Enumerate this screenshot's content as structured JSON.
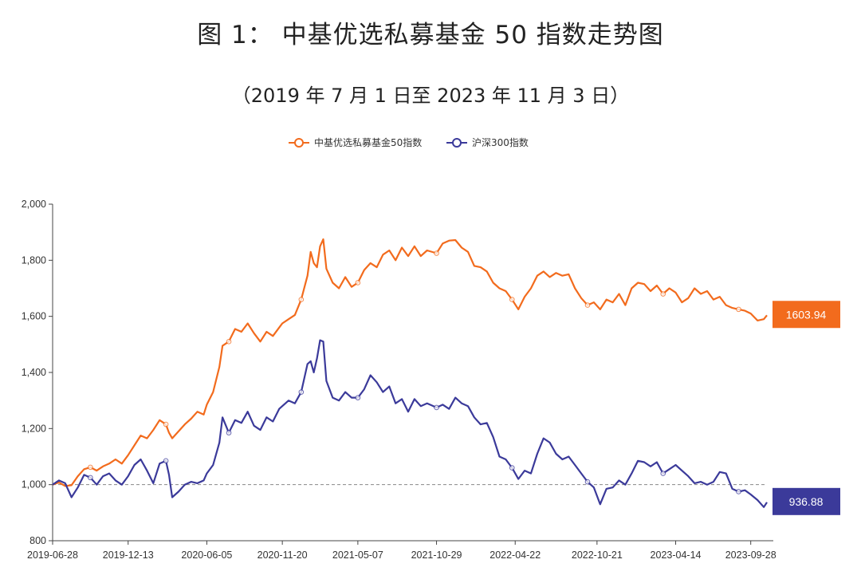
{
  "page": {
    "title": "图 1： 中基优选私募基金 50 指数走势图",
    "subtitle": "（2019 年 7 月 1 日至 2023 年 11 月 3 日）"
  },
  "colors": {
    "series_1": "#f26b1d",
    "series_2": "#3b3a9a",
    "baseline": "#888888",
    "axis": "#444444"
  },
  "chart_data": {
    "type": "line",
    "title": "图 1： 中基优选私募基金 50 指数走势图",
    "subtitle": "（2019 年 7 月 1 日至 2023 年 11 月 3 日）",
    "xlabel": "",
    "ylabel": "",
    "x_ticks": [
      "2019-06-28",
      "2019-12-13",
      "2020-06-05",
      "2020-11-20",
      "2021-05-07",
      "2021-10-29",
      "2022-04-22",
      "2022-10-21",
      "2023-04-14",
      "2023-09-28"
    ],
    "y_ticks": [
      "800",
      "1,000",
      "1,200",
      "1,400",
      "1,600",
      "1,800",
      "2,000"
    ],
    "ylim": [
      800,
      2000
    ],
    "xlim": [
      "2019-06-28",
      "2023-11-03"
    ],
    "reference_line": 1000,
    "grid": false,
    "legend_position": "top",
    "series": [
      {
        "name": "中基优选私募基金50指数",
        "end_label": "1603.94",
        "points": [
          [
            "2019-06-28",
            1000
          ],
          [
            "2019-07-12",
            1008
          ],
          [
            "2019-07-26",
            995
          ],
          [
            "2019-08-09",
            998
          ],
          [
            "2019-08-23",
            1030
          ],
          [
            "2019-09-06",
            1055
          ],
          [
            "2019-09-20",
            1062
          ],
          [
            "2019-10-04",
            1050
          ],
          [
            "2019-10-18",
            1065
          ],
          [
            "2019-11-01",
            1075
          ],
          [
            "2019-11-15",
            1090
          ],
          [
            "2019-11-29",
            1075
          ],
          [
            "2019-12-13",
            1105
          ],
          [
            "2019-12-27",
            1140
          ],
          [
            "2020-01-10",
            1175
          ],
          [
            "2020-01-24",
            1165
          ],
          [
            "2020-02-07",
            1195
          ],
          [
            "2020-02-21",
            1230
          ],
          [
            "2020-03-06",
            1215
          ],
          [
            "2020-03-13",
            1185
          ],
          [
            "2020-03-20",
            1165
          ],
          [
            "2020-04-03",
            1190
          ],
          [
            "2020-04-17",
            1215
          ],
          [
            "2020-05-01",
            1235
          ],
          [
            "2020-05-15",
            1260
          ],
          [
            "2020-05-29",
            1250
          ],
          [
            "2020-06-05",
            1285
          ],
          [
            "2020-06-19",
            1330
          ],
          [
            "2020-07-03",
            1420
          ],
          [
            "2020-07-10",
            1495
          ],
          [
            "2020-07-24",
            1510
          ],
          [
            "2020-08-07",
            1555
          ],
          [
            "2020-08-21",
            1545
          ],
          [
            "2020-09-04",
            1575
          ],
          [
            "2020-09-18",
            1540
          ],
          [
            "2020-10-02",
            1510
          ],
          [
            "2020-10-16",
            1545
          ],
          [
            "2020-10-30",
            1530
          ],
          [
            "2020-11-13",
            1560
          ],
          [
            "2020-11-20",
            1575
          ],
          [
            "2020-12-04",
            1590
          ],
          [
            "2020-12-18",
            1605
          ],
          [
            "2021-01-01",
            1660
          ],
          [
            "2021-01-15",
            1745
          ],
          [
            "2021-01-22",
            1830
          ],
          [
            "2021-01-29",
            1790
          ],
          [
            "2021-02-05",
            1775
          ],
          [
            "2021-02-12",
            1850
          ],
          [
            "2021-02-19",
            1875
          ],
          [
            "2021-02-26",
            1770
          ],
          [
            "2021-03-12",
            1720
          ],
          [
            "2021-03-26",
            1700
          ],
          [
            "2021-04-09",
            1740
          ],
          [
            "2021-04-23",
            1705
          ],
          [
            "2021-05-07",
            1720
          ],
          [
            "2021-05-21",
            1765
          ],
          [
            "2021-06-04",
            1790
          ],
          [
            "2021-06-18",
            1775
          ],
          [
            "2021-07-02",
            1820
          ],
          [
            "2021-07-16",
            1835
          ],
          [
            "2021-07-30",
            1800
          ],
          [
            "2021-08-13",
            1845
          ],
          [
            "2021-08-27",
            1815
          ],
          [
            "2021-09-10",
            1850
          ],
          [
            "2021-09-24",
            1815
          ],
          [
            "2021-10-08",
            1835
          ],
          [
            "2021-10-29",
            1825
          ],
          [
            "2021-11-12",
            1860
          ],
          [
            "2021-11-26",
            1870
          ],
          [
            "2021-12-10",
            1872
          ],
          [
            "2021-12-24",
            1845
          ],
          [
            "2022-01-07",
            1830
          ],
          [
            "2022-01-21",
            1780
          ],
          [
            "2022-02-04",
            1775
          ],
          [
            "2022-02-18",
            1760
          ],
          [
            "2022-03-04",
            1720
          ],
          [
            "2022-03-18",
            1700
          ],
          [
            "2022-04-01",
            1690
          ],
          [
            "2022-04-15",
            1660
          ],
          [
            "2022-04-29",
            1625
          ],
          [
            "2022-05-13",
            1670
          ],
          [
            "2022-05-27",
            1700
          ],
          [
            "2022-06-10",
            1745
          ],
          [
            "2022-06-24",
            1760
          ],
          [
            "2022-07-08",
            1740
          ],
          [
            "2022-07-22",
            1755
          ],
          [
            "2022-08-05",
            1745
          ],
          [
            "2022-08-19",
            1750
          ],
          [
            "2022-09-02",
            1700
          ],
          [
            "2022-09-16",
            1665
          ],
          [
            "2022-09-30",
            1640
          ],
          [
            "2022-10-14",
            1650
          ],
          [
            "2022-10-28",
            1625
          ],
          [
            "2022-11-11",
            1660
          ],
          [
            "2022-11-25",
            1650
          ],
          [
            "2022-12-09",
            1680
          ],
          [
            "2022-12-23",
            1640
          ],
          [
            "2023-01-06",
            1700
          ],
          [
            "2023-01-20",
            1720
          ],
          [
            "2023-02-03",
            1715
          ],
          [
            "2023-02-17",
            1690
          ],
          [
            "2023-03-03",
            1710
          ],
          [
            "2023-03-17",
            1680
          ],
          [
            "2023-03-31",
            1700
          ],
          [
            "2023-04-14",
            1685
          ],
          [
            "2023-04-28",
            1650
          ],
          [
            "2023-05-12",
            1665
          ],
          [
            "2023-05-26",
            1700
          ],
          [
            "2023-06-09",
            1680
          ],
          [
            "2023-06-23",
            1690
          ],
          [
            "2023-07-07",
            1660
          ],
          [
            "2023-07-21",
            1670
          ],
          [
            "2023-08-04",
            1640
          ],
          [
            "2023-08-18",
            1630
          ],
          [
            "2023-09-01",
            1625
          ],
          [
            "2023-09-15",
            1620
          ],
          [
            "2023-09-28",
            1610
          ],
          [
            "2023-10-13",
            1585
          ],
          [
            "2023-10-27",
            1590
          ],
          [
            "2023-11-03",
            1604
          ]
        ]
      },
      {
        "name": "沪深300指数",
        "end_label": "936.88",
        "points": [
          [
            "2019-06-28",
            1000
          ],
          [
            "2019-07-12",
            1015
          ],
          [
            "2019-07-26",
            1005
          ],
          [
            "2019-08-09",
            955
          ],
          [
            "2019-08-23",
            990
          ],
          [
            "2019-09-06",
            1035
          ],
          [
            "2019-09-20",
            1025
          ],
          [
            "2019-10-04",
            1000
          ],
          [
            "2019-10-18",
            1030
          ],
          [
            "2019-11-01",
            1040
          ],
          [
            "2019-11-15",
            1015
          ],
          [
            "2019-11-29",
            1000
          ],
          [
            "2019-12-13",
            1030
          ],
          [
            "2019-12-27",
            1070
          ],
          [
            "2020-01-10",
            1090
          ],
          [
            "2020-01-24",
            1050
          ],
          [
            "2020-02-07",
            1005
          ],
          [
            "2020-02-21",
            1075
          ],
          [
            "2020-03-06",
            1085
          ],
          [
            "2020-03-13",
            1035
          ],
          [
            "2020-03-20",
            955
          ],
          [
            "2020-04-03",
            975
          ],
          [
            "2020-04-17",
            1000
          ],
          [
            "2020-05-01",
            1010
          ],
          [
            "2020-05-15",
            1005
          ],
          [
            "2020-05-29",
            1015
          ],
          [
            "2020-06-05",
            1040
          ],
          [
            "2020-06-19",
            1070
          ],
          [
            "2020-07-03",
            1150
          ],
          [
            "2020-07-10",
            1240
          ],
          [
            "2020-07-24",
            1185
          ],
          [
            "2020-08-07",
            1230
          ],
          [
            "2020-08-21",
            1220
          ],
          [
            "2020-09-04",
            1260
          ],
          [
            "2020-09-18",
            1210
          ],
          [
            "2020-10-02",
            1195
          ],
          [
            "2020-10-16",
            1240
          ],
          [
            "2020-10-30",
            1225
          ],
          [
            "2020-11-13",
            1270
          ],
          [
            "2020-11-20",
            1280
          ],
          [
            "2020-12-04",
            1300
          ],
          [
            "2020-12-18",
            1290
          ],
          [
            "2021-01-01",
            1330
          ],
          [
            "2021-01-15",
            1430
          ],
          [
            "2021-01-22",
            1440
          ],
          [
            "2021-01-29",
            1400
          ],
          [
            "2021-02-05",
            1450
          ],
          [
            "2021-02-12",
            1515
          ],
          [
            "2021-02-19",
            1510
          ],
          [
            "2021-02-26",
            1370
          ],
          [
            "2021-03-12",
            1310
          ],
          [
            "2021-03-26",
            1300
          ],
          [
            "2021-04-09",
            1330
          ],
          [
            "2021-04-23",
            1310
          ],
          [
            "2021-05-07",
            1310
          ],
          [
            "2021-05-21",
            1340
          ],
          [
            "2021-06-04",
            1390
          ],
          [
            "2021-06-18",
            1365
          ],
          [
            "2021-07-02",
            1330
          ],
          [
            "2021-07-16",
            1350
          ],
          [
            "2021-07-30",
            1290
          ],
          [
            "2021-08-13",
            1305
          ],
          [
            "2021-08-27",
            1260
          ],
          [
            "2021-09-10",
            1305
          ],
          [
            "2021-09-24",
            1280
          ],
          [
            "2021-10-08",
            1290
          ],
          [
            "2021-10-29",
            1275
          ],
          [
            "2021-11-12",
            1285
          ],
          [
            "2021-11-26",
            1270
          ],
          [
            "2021-12-10",
            1310
          ],
          [
            "2021-12-24",
            1290
          ],
          [
            "2022-01-07",
            1280
          ],
          [
            "2022-01-21",
            1240
          ],
          [
            "2022-02-04",
            1215
          ],
          [
            "2022-02-18",
            1220
          ],
          [
            "2022-03-04",
            1170
          ],
          [
            "2022-03-18",
            1100
          ],
          [
            "2022-04-01",
            1090
          ],
          [
            "2022-04-15",
            1060
          ],
          [
            "2022-04-29",
            1020
          ],
          [
            "2022-05-13",
            1050
          ],
          [
            "2022-05-27",
            1040
          ],
          [
            "2022-06-10",
            1110
          ],
          [
            "2022-06-24",
            1165
          ],
          [
            "2022-07-08",
            1150
          ],
          [
            "2022-07-22",
            1110
          ],
          [
            "2022-08-05",
            1090
          ],
          [
            "2022-08-19",
            1100
          ],
          [
            "2022-09-02",
            1070
          ],
          [
            "2022-09-16",
            1040
          ],
          [
            "2022-09-30",
            1010
          ],
          [
            "2022-10-14",
            990
          ],
          [
            "2022-10-28",
            930
          ],
          [
            "2022-11-11",
            985
          ],
          [
            "2022-11-25",
            990
          ],
          [
            "2022-12-09",
            1015
          ],
          [
            "2022-12-23",
            1000
          ],
          [
            "2023-01-06",
            1040
          ],
          [
            "2023-01-20",
            1085
          ],
          [
            "2023-02-03",
            1080
          ],
          [
            "2023-02-17",
            1065
          ],
          [
            "2023-03-03",
            1080
          ],
          [
            "2023-03-17",
            1040
          ],
          [
            "2023-03-31",
            1055
          ],
          [
            "2023-04-14",
            1070
          ],
          [
            "2023-04-28",
            1050
          ],
          [
            "2023-05-12",
            1030
          ],
          [
            "2023-05-26",
            1005
          ],
          [
            "2023-06-09",
            1010
          ],
          [
            "2023-06-23",
            1000
          ],
          [
            "2023-07-07",
            1010
          ],
          [
            "2023-07-21",
            1045
          ],
          [
            "2023-08-04",
            1040
          ],
          [
            "2023-08-18",
            985
          ],
          [
            "2023-09-01",
            975
          ],
          [
            "2023-09-15",
            980
          ],
          [
            "2023-09-28",
            965
          ],
          [
            "2023-10-13",
            945
          ],
          [
            "2023-10-27",
            920
          ],
          [
            "2023-11-03",
            937
          ]
        ]
      }
    ]
  }
}
